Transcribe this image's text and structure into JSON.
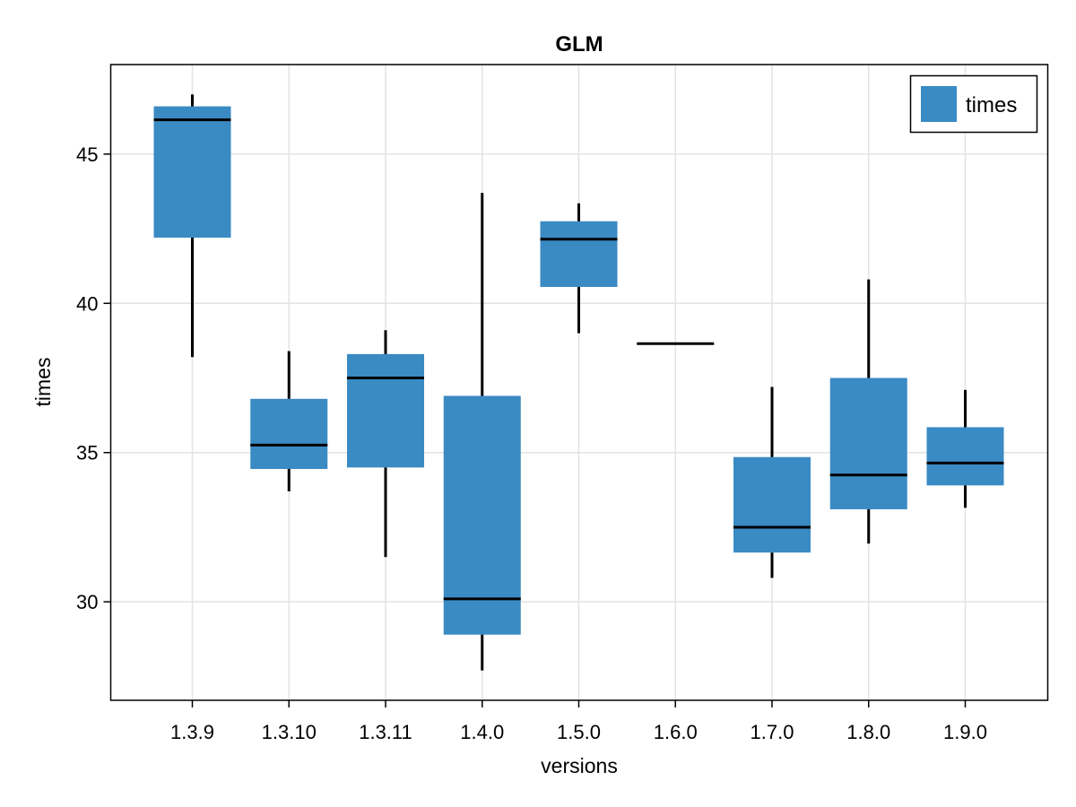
{
  "chart_data": {
    "type": "box",
    "title": "GLM",
    "xlabel": "versions",
    "ylabel": "times",
    "ylim": [
      26.7,
      48.0
    ],
    "yticks": [
      30,
      35,
      40,
      45
    ],
    "grid": true,
    "legend": {
      "position": "top-right",
      "entries": [
        "times"
      ]
    },
    "series": [
      {
        "name": "times",
        "color": "#3a8ac4",
        "boxes": [
          {
            "category": "1.3.9",
            "min": 38.2,
            "q1": 42.2,
            "median": 46.15,
            "q3": 46.6,
            "max": 47.0
          },
          {
            "category": "1.3.10",
            "min": 33.7,
            "q1": 34.45,
            "median": 35.25,
            "q3": 36.8,
            "max": 38.4
          },
          {
            "category": "1.3.11",
            "min": 31.5,
            "q1": 34.5,
            "median": 37.5,
            "q3": 38.3,
            "max": 39.1
          },
          {
            "category": "1.4.0",
            "min": 27.7,
            "q1": 28.9,
            "median": 30.1,
            "q3": 36.9,
            "max": 43.7
          },
          {
            "category": "1.5.0",
            "min": 39.0,
            "q1": 40.55,
            "median": 42.15,
            "q3": 42.75,
            "max": 43.35
          },
          {
            "category": "1.6.0",
            "min": 38.65,
            "q1": 38.65,
            "median": 38.65,
            "q3": 38.65,
            "max": 38.65
          },
          {
            "category": "1.7.0",
            "min": 30.8,
            "q1": 31.65,
            "median": 32.5,
            "q3": 34.85,
            "max": 37.2
          },
          {
            "category": "1.8.0",
            "min": 31.95,
            "q1": 33.1,
            "median": 34.25,
            "q3": 37.5,
            "max": 40.8
          },
          {
            "category": "1.9.0",
            "min": 33.15,
            "q1": 33.9,
            "median": 34.65,
            "q3": 35.85,
            "max": 37.1
          }
        ]
      }
    ]
  }
}
